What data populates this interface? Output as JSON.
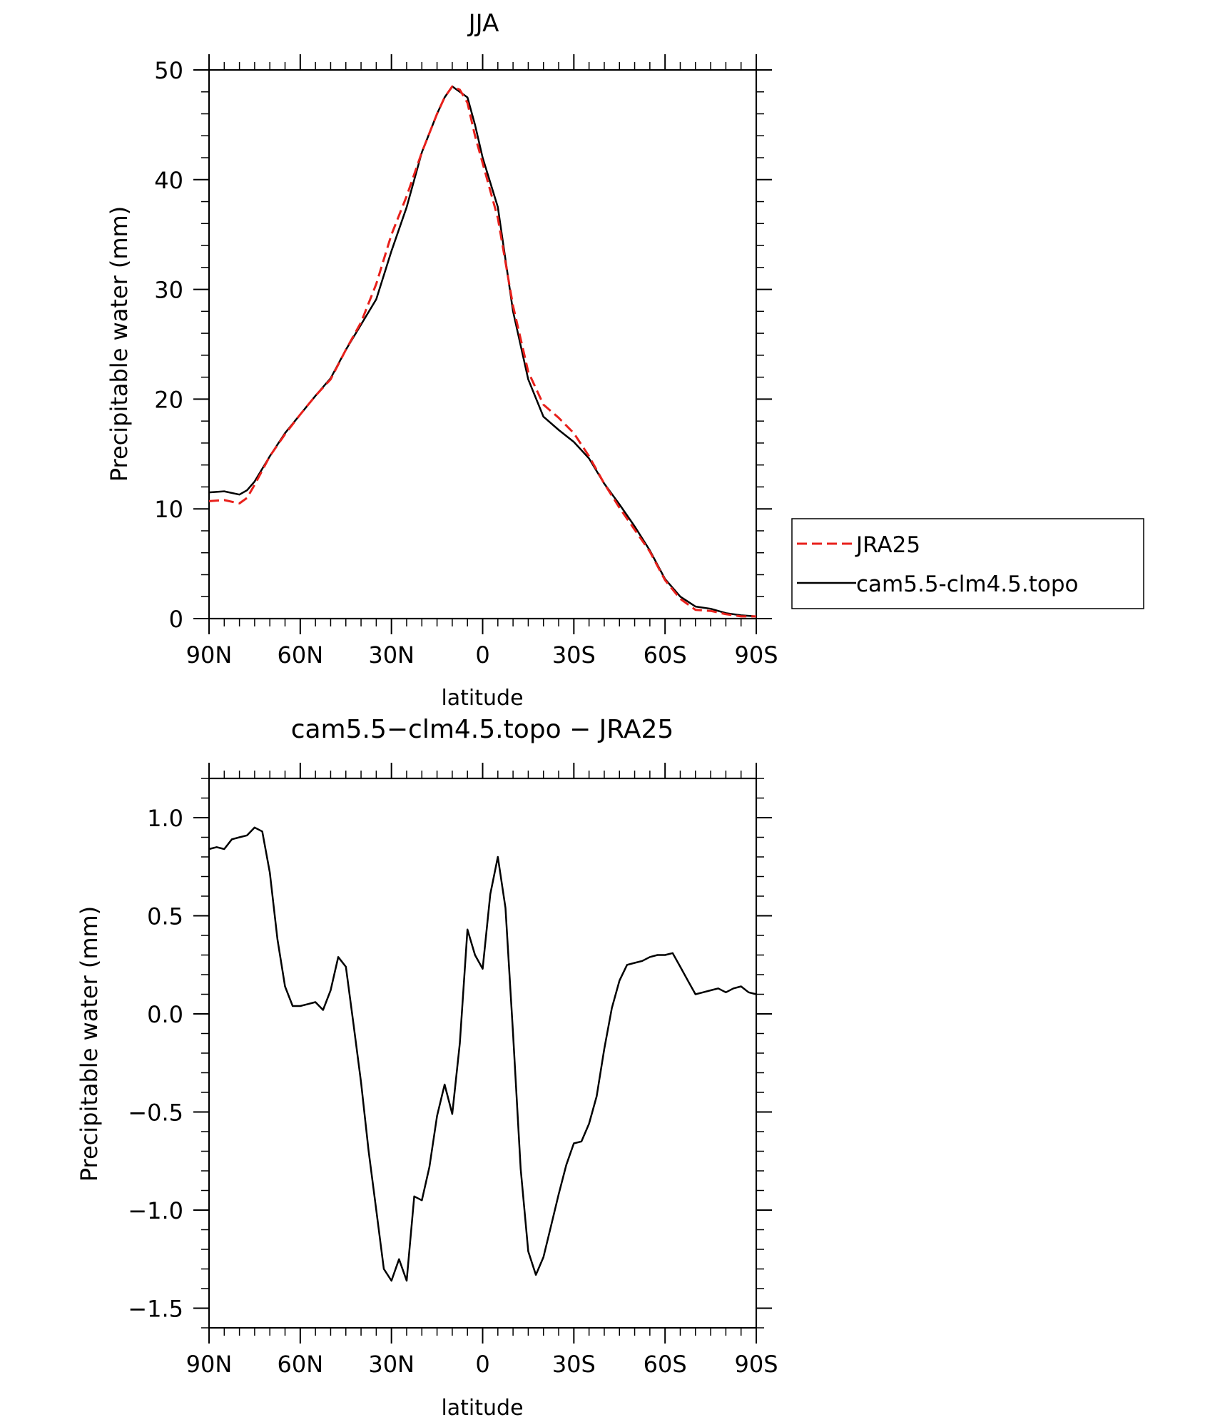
{
  "chart_data": [
    {
      "type": "line",
      "title": "JJA",
      "xlabel": "latitude",
      "ylabel": "Precipitable water (mm)",
      "xlim": [
        90,
        -90
      ],
      "ylim": [
        0,
        50
      ],
      "xticks": [
        90,
        60,
        30,
        0,
        -30,
        -60,
        -90
      ],
      "xtick_labels": [
        "90N",
        "60N",
        "30N",
        "0",
        "30S",
        "60S",
        "90S"
      ],
      "yticks": [
        0,
        10,
        20,
        30,
        40,
        50
      ],
      "ytick_labels": [
        "0",
        "10",
        "20",
        "30",
        "40",
        "50"
      ],
      "legend_position": "outside-right",
      "series": [
        {
          "name": "JRA25",
          "color": "#e8201b",
          "dash": "dashed",
          "x": [
            90,
            85,
            80,
            77.5,
            75,
            70,
            65,
            60,
            55,
            50,
            45,
            40,
            35,
            30,
            25,
            20,
            15,
            12.5,
            10,
            7.5,
            5,
            2.5,
            0,
            -5,
            -10,
            -15,
            -20,
            -25,
            -30,
            -35,
            -40,
            -45,
            -50,
            -55,
            -60,
            -65,
            -70,
            -75,
            -80,
            -85,
            -90
          ],
          "y": [
            10.7,
            10.8,
            10.5,
            11.0,
            12.2,
            14.8,
            16.8,
            18.6,
            20.3,
            21.8,
            24.5,
            27.0,
            30.5,
            35.0,
            38.5,
            42.5,
            46.0,
            47.5,
            48.5,
            48.2,
            47.0,
            44.0,
            41.5,
            36.5,
            28.5,
            22.5,
            19.5,
            18.3,
            16.9,
            14.8,
            12.3,
            10.1,
            8.1,
            6.1,
            3.5,
            1.8,
            0.8,
            0.7,
            0.4,
            0.2,
            0.2
          ]
        },
        {
          "name": "cam5.5-clm4.5.topo",
          "color": "#000000",
          "dash": "solid",
          "x": [
            90,
            85,
            80,
            77.5,
            75,
            70,
            65,
            60,
            55,
            50,
            45,
            40,
            35,
            30,
            25,
            20,
            15,
            12.5,
            10,
            7.5,
            5,
            2.5,
            0,
            -5,
            -10,
            -15,
            -20,
            -25,
            -30,
            -35,
            -40,
            -45,
            -50,
            -55,
            -60,
            -65,
            -70,
            -75,
            -80,
            -85,
            -90
          ],
          "y": [
            11.5,
            11.6,
            11.3,
            11.7,
            12.5,
            14.8,
            16.9,
            18.6,
            20.3,
            21.9,
            24.5,
            26.8,
            29.1,
            33.5,
            37.5,
            42.5,
            46.0,
            47.5,
            48.5,
            48.0,
            47.5,
            45.0,
            42.0,
            37.5,
            28.0,
            21.8,
            18.4,
            17.2,
            16.1,
            14.6,
            12.3,
            10.4,
            8.4,
            6.2,
            3.6,
            2.0,
            1.1,
            0.9,
            0.5,
            0.3,
            0.2
          ]
        }
      ]
    },
    {
      "type": "line",
      "title": "cam5.5−clm4.5.topo − JRA25",
      "xlabel": "latitude",
      "ylabel": "Precipitable water (mm)",
      "xlim": [
        90,
        -90
      ],
      "ylim": [
        -1.6,
        1.2
      ],
      "xticks": [
        90,
        60,
        30,
        0,
        -30,
        -60,
        -90
      ],
      "xtick_labels": [
        "90N",
        "60N",
        "30N",
        "0",
        "30S",
        "60S",
        "90S"
      ],
      "yticks": [
        1.0,
        0.5,
        0.0,
        -0.5,
        -1.0,
        -1.5
      ],
      "ytick_labels": [
        "1.0",
        "0.5",
        "0.0",
        "−0.5",
        "−1.0",
        "−1.5"
      ],
      "series": [
        {
          "color": "#000000",
          "dash": "solid",
          "x": [
            90,
            87.5,
            85,
            82.5,
            80,
            77.5,
            75,
            72.5,
            70,
            67.5,
            65,
            62.5,
            60,
            57.5,
            55,
            52.5,
            50,
            47.5,
            45,
            42.5,
            40,
            37.5,
            35,
            32.5,
            30,
            27.5,
            25,
            22.5,
            20,
            17.5,
            15,
            12.5,
            10,
            7.5,
            5,
            2.5,
            0,
            -2.5,
            -5,
            -7.5,
            -10,
            -12.5,
            -15,
            -17.5,
            -20,
            -22.5,
            -25,
            -27.5,
            -30,
            -32.5,
            -35,
            -37.5,
            -40,
            -42.5,
            -45,
            -47.5,
            -50,
            -52.5,
            -55,
            -57.5,
            -60,
            -62.5,
            -65,
            -67.5,
            -70,
            -72.5,
            -75,
            -77.5,
            -80,
            -82.5,
            -85,
            -87.5,
            -90
          ],
          "y": [
            0.84,
            0.85,
            0.84,
            0.89,
            0.9,
            0.91,
            0.95,
            0.93,
            0.72,
            0.38,
            0.14,
            0.04,
            0.04,
            0.05,
            0.06,
            0.02,
            0.12,
            0.29,
            0.24,
            -0.05,
            -0.35,
            -0.7,
            -1.0,
            -1.3,
            -1.36,
            -1.25,
            -1.36,
            -0.93,
            -0.95,
            -0.78,
            -0.52,
            -0.36,
            -0.51,
            -0.15,
            0.43,
            0.3,
            0.23,
            0.61,
            0.8,
            0.54,
            -0.1,
            -0.79,
            -1.21,
            -1.33,
            -1.24,
            -1.08,
            -0.92,
            -0.77,
            -0.66,
            -0.65,
            -0.56,
            -0.42,
            -0.18,
            0.03,
            0.17,
            0.25,
            0.26,
            0.27,
            0.29,
            0.3,
            0.3,
            0.31,
            0.24,
            0.17,
            0.1,
            0.11,
            0.12,
            0.13,
            0.11,
            0.13,
            0.14,
            0.11,
            0.1
          ]
        }
      ]
    }
  ]
}
